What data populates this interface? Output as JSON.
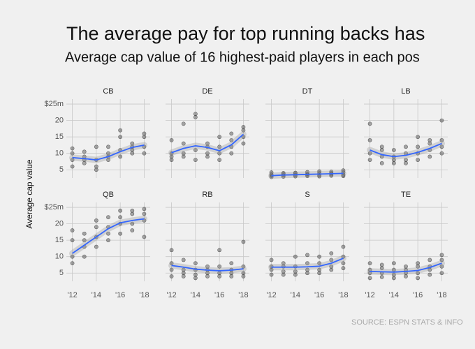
{
  "chart_data": {
    "type": "scatter",
    "title": "The average pay for top running backs has",
    "subtitle": "Average cap value of 16 highest-paid players in each pos",
    "y_label": "Average cap value",
    "source": "SOURCE: ESPN STATS & INFO",
    "point_color": "#555555",
    "line_color": "#3366ff",
    "grid": true,
    "x": [
      2012,
      2013,
      2014,
      2015,
      2016,
      2017,
      2018
    ],
    "xlim": [
      2011.5,
      2018.5
    ],
    "ylim": [
      2.5,
      26.5
    ],
    "xticks": [
      {
        "value": 2012,
        "label": "'12"
      },
      {
        "value": 2014,
        "label": "'14"
      },
      {
        "value": 2016,
        "label": "'16"
      },
      {
        "value": 2018,
        "label": "'18"
      }
    ],
    "yticks": [
      5,
      10,
      15,
      20,
      {
        "value": 25,
        "label": "$25m"
      }
    ],
    "panels": [
      {
        "name": "CB",
        "smooth": [
          8.7,
          8.4,
          8.0,
          9.0,
          10.5,
          11.8,
          12.5
        ],
        "points": [
          [
            6,
            8,
            10,
            11.5
          ],
          [
            7,
            9,
            10.5,
            8
          ],
          [
            5,
            6,
            8,
            12
          ],
          [
            8,
            10,
            12,
            9
          ],
          [
            9,
            11,
            15,
            17
          ],
          [
            10,
            12,
            13,
            11
          ],
          [
            10,
            12,
            15,
            16
          ]
        ]
      },
      {
        "name": "DE",
        "smooth": [
          10.2,
          11.5,
          12.3,
          11.8,
          10.8,
          12.6,
          15.8
        ],
        "points": [
          [
            8,
            9,
            10,
            14
          ],
          [
            9,
            10,
            13,
            19
          ],
          [
            8,
            11,
            21,
            22
          ],
          [
            9,
            12,
            13,
            10
          ],
          [
            8,
            10,
            12,
            15
          ],
          [
            10,
            12,
            14,
            16
          ],
          [
            13,
            15,
            17,
            18
          ]
        ]
      },
      {
        "name": "DT",
        "smooth": [
          3.2,
          3.4,
          3.5,
          3.6,
          3.7,
          3.8,
          3.9
        ],
        "points": [
          [
            2.8,
            3.2,
            3.6,
            4.2
          ],
          [
            2.9,
            3.3,
            3.8,
            4
          ],
          [
            3,
            3.4,
            3.9,
            4.1
          ],
          [
            3.1,
            3.5,
            3.8,
            4.3
          ],
          [
            3,
            3.4,
            4,
            4.5
          ],
          [
            3.2,
            3.6,
            4,
            4.4
          ],
          [
            3.1,
            3.5,
            4.2,
            4.8
          ]
        ]
      },
      {
        "name": "LB",
        "smooth": [
          11.0,
          9.6,
          9.0,
          9.4,
          10.3,
          11.5,
          13.0
        ],
        "points": [
          [
            8,
            10,
            14,
            19
          ],
          [
            7,
            9,
            11,
            12
          ],
          [
            7,
            8,
            9,
            11
          ],
          [
            7,
            8,
            10,
            12
          ],
          [
            8,
            10,
            12,
            15
          ],
          [
            9,
            11,
            13,
            14
          ],
          [
            10,
            12,
            14,
            20
          ]
        ]
      },
      {
        "name": "QB",
        "smooth": [
          11,
          13.5,
          16,
          18.5,
          20.3,
          21,
          21.5
        ],
        "points": [
          [
            8,
            10,
            15,
            18
          ],
          [
            10,
            13,
            15,
            17
          ],
          [
            13,
            16,
            19,
            21
          ],
          [
            15,
            17,
            19,
            22
          ],
          [
            17,
            20,
            22,
            24
          ],
          [
            18,
            20,
            23,
            24
          ],
          [
            16,
            21,
            23,
            24.5
          ]
        ]
      },
      {
        "name": "RB",
        "smooth": [
          7.3,
          6.8,
          6.2,
          5.9,
          5.7,
          5.9,
          6.3
        ],
        "points": [
          [
            4,
            6,
            8,
            12
          ],
          [
            4,
            5,
            6,
            9
          ],
          [
            3.5,
            4.5,
            6,
            8
          ],
          [
            4,
            5,
            6,
            7
          ],
          [
            4,
            5,
            7,
            12
          ],
          [
            4,
            5,
            6,
            8
          ],
          [
            4,
            5,
            7,
            14.5
          ]
        ]
      },
      {
        "name": "S",
        "smooth": [
          6.8,
          6.8,
          6.8,
          6.9,
          7.1,
          8.0,
          9.5
        ],
        "points": [
          [
            4.5,
            6,
            7,
            9
          ],
          [
            4.5,
            5.5,
            7,
            8
          ],
          [
            4.5,
            5.5,
            7,
            10
          ],
          [
            5,
            6,
            8,
            10.5
          ],
          [
            5,
            6,
            8,
            10
          ],
          [
            6,
            7,
            9,
            11
          ],
          [
            6.5,
            8,
            10,
            13
          ]
        ]
      },
      {
        "name": "TE",
        "smooth": [
          5.5,
          5.4,
          5.3,
          5.5,
          5.8,
          6.7,
          8.0
        ],
        "points": [
          [
            3.5,
            5,
            6,
            8
          ],
          [
            3.8,
            5,
            6.5,
            7.5
          ],
          [
            3.5,
            4.5,
            6,
            8
          ],
          [
            4,
            5,
            6,
            7
          ],
          [
            3.5,
            5,
            7,
            8
          ],
          [
            4.5,
            6,
            7,
            9
          ],
          [
            5,
            7,
            9,
            10.5
          ]
        ]
      }
    ]
  }
}
